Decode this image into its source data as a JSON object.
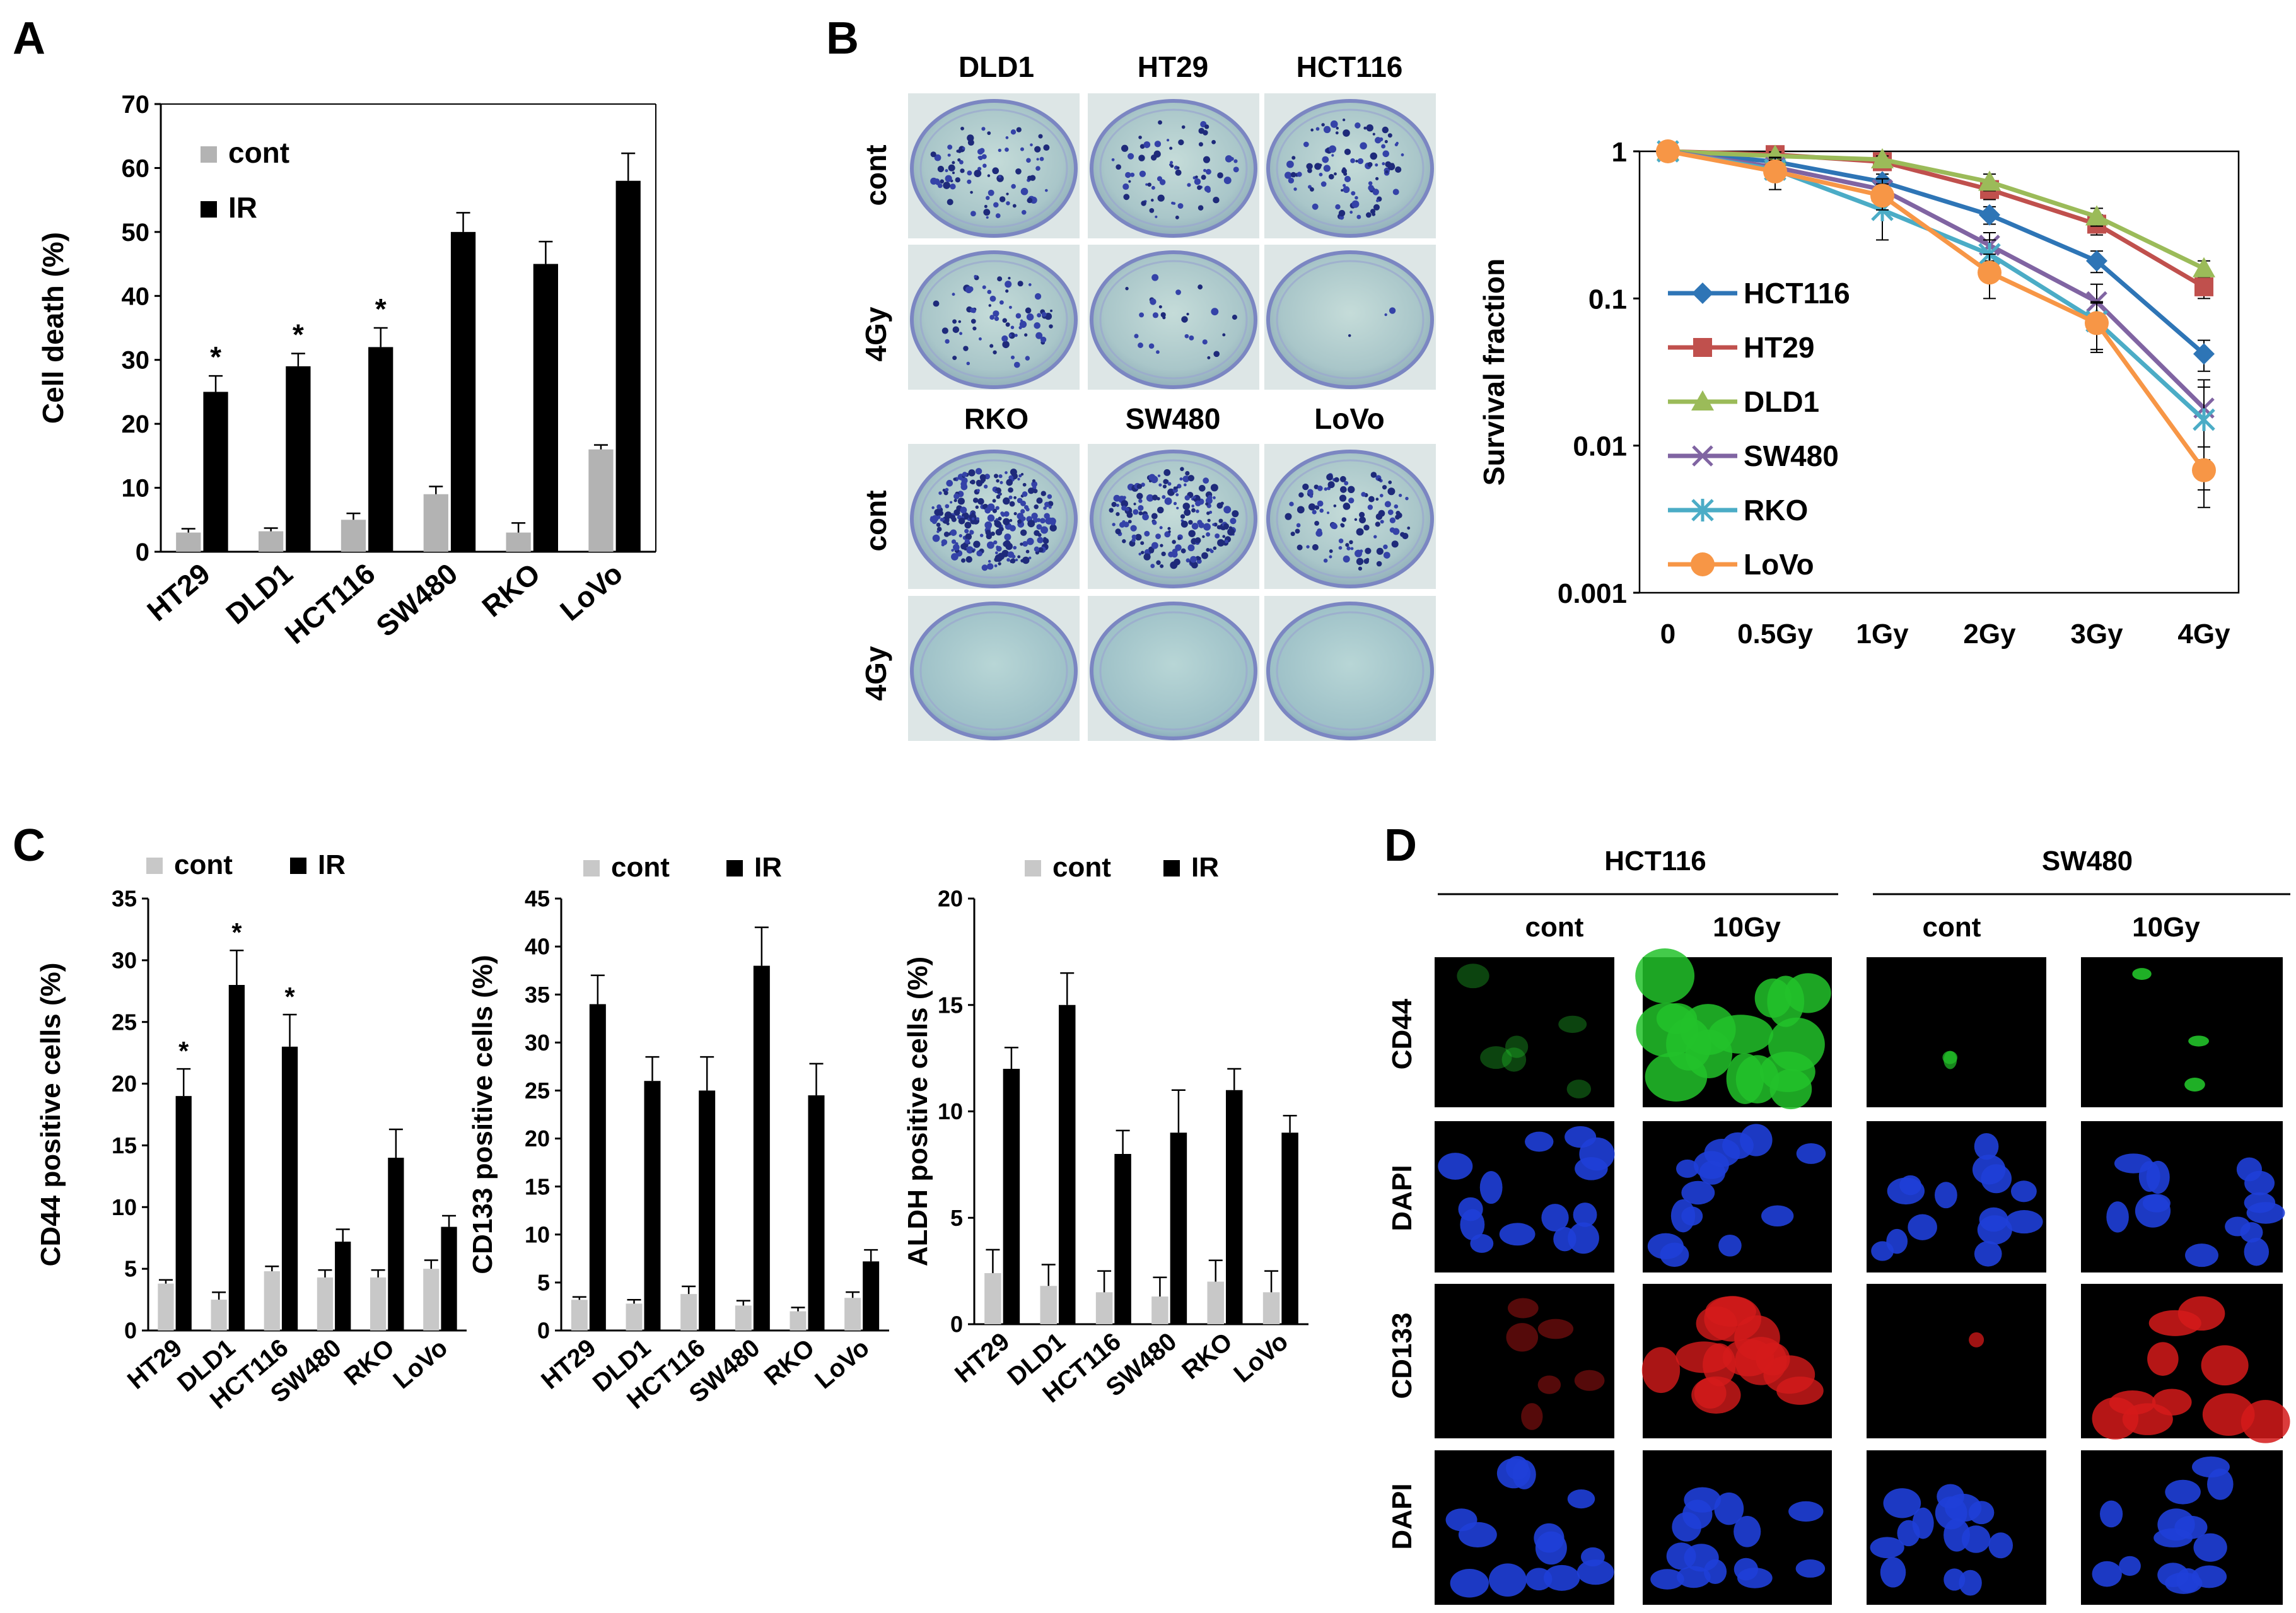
{
  "panel_letters": [
    "A",
    "B",
    "C",
    "D"
  ],
  "colors": {
    "cont": "#b3b3b3",
    "IR": "#000000",
    "axis": "#000000"
  },
  "panelB": {
    "columns_top": [
      "DLD1",
      "HT29",
      "HCT116"
    ],
    "columns_bottom": [
      "RKO",
      "SW480",
      "LoVo"
    ],
    "rows": [
      "cont",
      "4Gy"
    ]
  },
  "panelD": {
    "groups": [
      "HCT116",
      "SW480"
    ],
    "conditions": [
      "cont",
      "10Gy"
    ],
    "rows": [
      "CD44",
      "DAPI",
      "CD133",
      "DAPI"
    ]
  },
  "chart_data": [
    {
      "id": "A",
      "type": "bar",
      "categories": [
        "HT29",
        "DLD1",
        "HCT116",
        "SW480",
        "RKO",
        "LoVo"
      ],
      "series": [
        {
          "name": "cont",
          "values": [
            3,
            3.2,
            5,
            9,
            3,
            16
          ],
          "errors": [
            0.6,
            0.5,
            1.0,
            1.2,
            1.5,
            0.7
          ],
          "color": "#b3b3b3"
        },
        {
          "name": "IR",
          "values": [
            25,
            29,
            32,
            50,
            45,
            58
          ],
          "errors": [
            2.5,
            2.0,
            3.0,
            3.0,
            3.5,
            4.3
          ],
          "color": "#000000"
        }
      ],
      "significance": [
        "*",
        "*",
        "*",
        "",
        "",
        ""
      ],
      "xlabel": "",
      "ylabel": "Cell death (%)",
      "ylim": [
        0,
        70
      ],
      "yticks": [
        0,
        10,
        20,
        30,
        40,
        50,
        60,
        70
      ],
      "legend": "top-left",
      "grid": false
    },
    {
      "id": "B",
      "type": "line",
      "categories": [
        "0",
        "0.5Gy",
        "1Gy",
        "2Gy",
        "3Gy",
        "4Gy"
      ],
      "series": [
        {
          "name": "HCT116",
          "values": [
            1,
            0.85,
            0.62,
            0.37,
            0.18,
            0.042
          ],
          "errors": [
            0,
            0.1,
            0.08,
            0.05,
            0.03,
            0.01
          ],
          "color": "#2e75b6",
          "marker": "diamond"
        },
        {
          "name": "HT29",
          "values": [
            1,
            0.95,
            0.85,
            0.55,
            0.32,
            0.12
          ],
          "errors": [
            0,
            0.06,
            0.05,
            0.08,
            0.05,
            0.02
          ],
          "color": "#c0504d",
          "marker": "square"
        },
        {
          "name": "DLD1",
          "values": [
            1,
            0.93,
            0.88,
            0.62,
            0.36,
            0.16
          ],
          "errors": [
            0,
            0.06,
            0.05,
            0.08,
            0.05,
            0.02
          ],
          "color": "#9bbb59",
          "marker": "triangle"
        },
        {
          "name": "SW480",
          "values": [
            1,
            0.78,
            0.55,
            0.23,
            0.095,
            0.018
          ],
          "errors": [
            0,
            0.12,
            0.1,
            0.05,
            0.03,
            0.01
          ],
          "color": "#8064a2",
          "marker": "x"
        },
        {
          "name": "RKO",
          "values": [
            1,
            0.75,
            0.4,
            0.2,
            0.07,
            0.015
          ],
          "errors": [
            0,
            0.12,
            0.15,
            0.05,
            0.025,
            0.01
          ],
          "color": "#4bacc6",
          "marker": "star"
        },
        {
          "name": "LoVo",
          "values": [
            1,
            0.73,
            0.5,
            0.15,
            0.068,
            0.0068
          ],
          "errors": [
            0,
            0.18,
            0.1,
            0.05,
            0.025,
            0.003
          ],
          "color": "#f79646",
          "marker": "circle"
        }
      ],
      "xlabel": "",
      "ylabel": "Survival fraction",
      "yscale": "log",
      "ylim": [
        0.001,
        1
      ],
      "yticks": [
        "1",
        "0.1",
        "0.01",
        "0.001"
      ],
      "legend": "left",
      "grid": false
    },
    {
      "id": "C1",
      "type": "bar",
      "categories": [
        "HT29",
        "DLD1",
        "HCT116",
        "SW480",
        "RKO",
        "LoVo"
      ],
      "series": [
        {
          "name": "cont",
          "values": [
            3.8,
            2.5,
            4.8,
            4.3,
            4.3,
            5.0
          ],
          "errors": [
            0.3,
            0.6,
            0.4,
            0.6,
            0.6,
            0.7
          ],
          "color": "#c8c8c8"
        },
        {
          "name": "IR",
          "values": [
            19,
            28,
            23,
            7.2,
            14,
            8.4
          ],
          "errors": [
            2.2,
            2.8,
            2.6,
            1.0,
            2.3,
            0.9
          ],
          "color": "#000000"
        }
      ],
      "significance": [
        "*",
        "*",
        "*",
        "",
        "",
        ""
      ],
      "ylabel": "CD44 positive cells (%)",
      "ylim": [
        0,
        35
      ],
      "yticks": [
        0,
        5,
        10,
        15,
        20,
        25,
        30,
        35
      ],
      "legend": "top",
      "grid": false
    },
    {
      "id": "C2",
      "type": "bar",
      "categories": [
        "HT29",
        "DLD1",
        "HCT116",
        "SW480",
        "RKO",
        "LoVo"
      ],
      "series": [
        {
          "name": "cont",
          "values": [
            3.2,
            2.8,
            3.8,
            2.6,
            2.0,
            3.4
          ],
          "errors": [
            0.3,
            0.4,
            0.8,
            0.5,
            0.4,
            0.6
          ],
          "color": "#c8c8c8"
        },
        {
          "name": "IR",
          "values": [
            34,
            26,
            25,
            38,
            24.5,
            7.2
          ],
          "errors": [
            3.0,
            2.5,
            3.5,
            4.0,
            3.3,
            1.2
          ],
          "color": "#000000"
        }
      ],
      "ylabel": "CD133 positive cells (%)",
      "ylim": [
        0,
        45
      ],
      "yticks": [
        0,
        5,
        10,
        15,
        20,
        25,
        30,
        35,
        40,
        45
      ],
      "legend": "top",
      "grid": false
    },
    {
      "id": "C3",
      "type": "bar",
      "categories": [
        "HT29",
        "DLD1",
        "HCT116",
        "SW480",
        "RKO",
        "LoVo"
      ],
      "series": [
        {
          "name": "cont",
          "values": [
            2.4,
            1.8,
            1.5,
            1.3,
            2.0,
            1.5
          ],
          "errors": [
            1.1,
            1.0,
            1.0,
            0.9,
            1.0,
            1.0
          ],
          "color": "#c8c8c8"
        },
        {
          "name": "IR",
          "values": [
            12,
            15,
            8,
            9,
            11,
            9
          ],
          "errors": [
            1.0,
            1.5,
            1.1,
            2.0,
            1.0,
            0.8
          ],
          "color": "#000000"
        }
      ],
      "ylabel": "ALDH positive cells (%)",
      "ylim": [
        0,
        20
      ],
      "yticks": [
        0,
        5,
        10,
        15,
        20
      ],
      "legend": "top",
      "grid": false
    }
  ]
}
